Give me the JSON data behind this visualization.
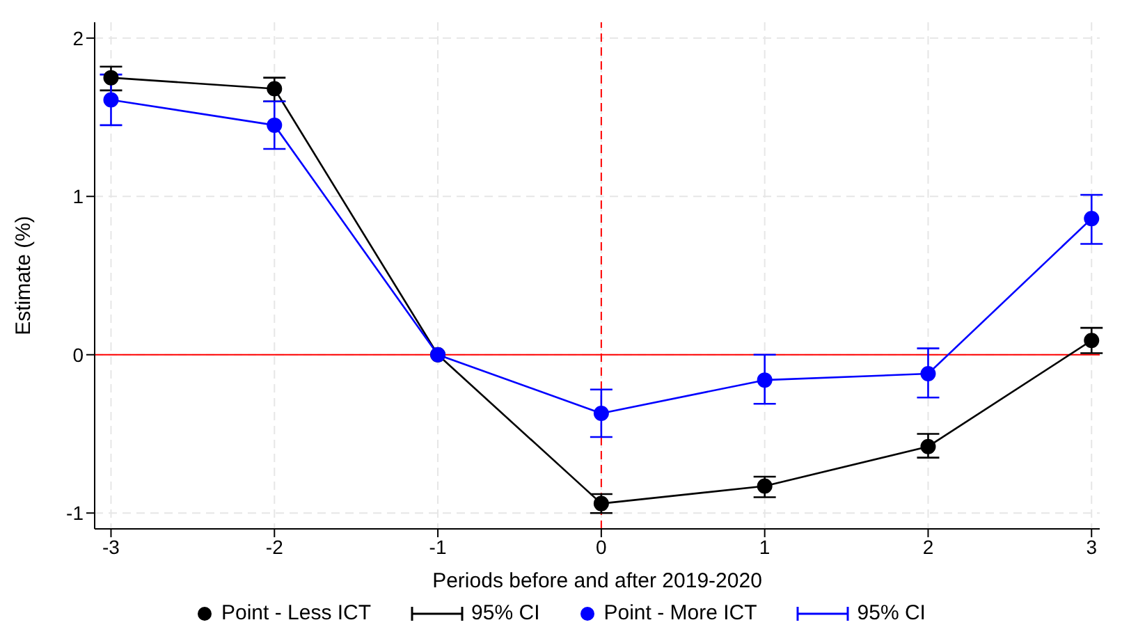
{
  "chart_data": {
    "type": "line",
    "xlabel": "Periods before and after 2019-2020",
    "ylabel": "Estimate (%)",
    "x": [
      -3,
      -2,
      -1,
      0,
      1,
      2,
      3
    ],
    "xlim": [
      -3.1,
      3.05
    ],
    "xticks": [
      -3,
      -2,
      -1,
      0,
      1,
      2,
      3
    ],
    "ylim": [
      -1.1,
      2.1
    ],
    "yticks": [
      -1,
      0,
      1,
      2
    ],
    "grid": true,
    "marker": "circle",
    "line_style": "solid",
    "legend": "bottom",
    "series": [
      {
        "name": "Point - Less ICT",
        "color": "#000000",
        "values": [
          1.75,
          1.68,
          0,
          -0.94,
          -0.83,
          -0.58,
          0.09
        ],
        "errors": [
          [
            1.67,
            1.82
          ],
          [
            1.6,
            1.75
          ],
          null,
          [
            -1.0,
            -0.88
          ],
          [
            -0.9,
            -0.77
          ],
          [
            -0.65,
            -0.5
          ],
          [
            0.01,
            0.17
          ]
        ]
      },
      {
        "name": "Point - More ICT",
        "color": "#0000ff",
        "values": [
          1.61,
          1.45,
          0,
          -0.37,
          -0.16,
          -0.12,
          0.86
        ],
        "errors": [
          [
            1.45,
            1.77
          ],
          [
            1.3,
            1.6
          ],
          null,
          [
            -0.52,
            -0.22
          ],
          [
            -0.31,
            0
          ],
          [
            -0.27,
            0.04
          ],
          [
            0.7,
            1.01
          ]
        ]
      }
    ],
    "annotations": [
      "95% CI",
      "95% CI"
    ],
    "ref_lines": [
      {
        "axis": "y",
        "value": 0,
        "color": "#ff0000",
        "line_style": "solid"
      },
      {
        "axis": "x",
        "value": 0,
        "color": "#ff0000",
        "line_style": "dashed"
      }
    ]
  }
}
